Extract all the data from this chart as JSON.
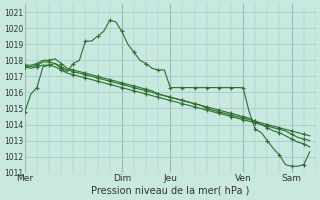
{
  "xlabel": "Pression niveau de la mer( hPa )",
  "bg_color": "#c8e8e0",
  "grid_color": "#a0c8c0",
  "line_color": "#2d6e2d",
  "marker": "+",
  "ylim": [
    1011,
    1021.5
  ],
  "ylim_display": [
    1011,
    1021
  ],
  "yticks": [
    1011,
    1012,
    1013,
    1014,
    1015,
    1016,
    1017,
    1018,
    1019,
    1020,
    1021
  ],
  "day_labels": [
    "Mer",
    "Dim",
    "Jeu",
    "Ven",
    "Sam"
  ],
  "day_positions": [
    0,
    16,
    24,
    36,
    44
  ],
  "xmax": 48,
  "series": [
    [
      1014.8,
      1015.9,
      1016.3,
      1017.6,
      1017.7,
      1017.8,
      1017.5,
      1017.3,
      1017.8,
      1018.0,
      1019.2,
      1019.2,
      1019.5,
      1019.8,
      1020.5,
      1020.4,
      1019.8,
      1019.0,
      1018.5,
      1018.0,
      1017.8,
      1017.5,
      1017.4,
      1017.4,
      1016.3,
      1016.3,
      1016.3,
      1016.3,
      1016.3,
      1016.3,
      1016.3,
      1016.3,
      1016.3,
      1016.3,
      1016.3,
      1016.3,
      1016.3,
      1014.8,
      1013.7,
      1013.5,
      1013.0,
      1012.5,
      1012.1,
      1011.5,
      1011.4,
      1011.4,
      1011.5,
      1012.3
    ],
    [
      1017.7,
      1017.7,
      1017.8,
      1018.0,
      1018.0,
      1018.1,
      1017.8,
      1017.5,
      1017.4,
      1017.3,
      1017.2,
      1017.1,
      1017.0,
      1016.9,
      1016.8,
      1016.7,
      1016.6,
      1016.5,
      1016.4,
      1016.3,
      1016.2,
      1016.1,
      1015.9,
      1015.8,
      1015.7,
      1015.6,
      1015.5,
      1015.4,
      1015.3,
      1015.2,
      1015.1,
      1015.0,
      1014.9,
      1014.8,
      1014.7,
      1014.6,
      1014.5,
      1014.4,
      1014.2,
      1014.0,
      1013.8,
      1013.6,
      1013.5,
      1013.3,
      1013.1,
      1012.9,
      1012.8,
      1012.6
    ],
    [
      1017.6,
      1017.6,
      1017.7,
      1017.9,
      1017.9,
      1017.8,
      1017.6,
      1017.4,
      1017.3,
      1017.2,
      1017.1,
      1017.0,
      1016.9,
      1016.8,
      1016.7,
      1016.6,
      1016.5,
      1016.4,
      1016.3,
      1016.2,
      1016.1,
      1016.0,
      1015.9,
      1015.8,
      1015.7,
      1015.6,
      1015.5,
      1015.4,
      1015.3,
      1015.2,
      1015.0,
      1014.9,
      1014.8,
      1014.7,
      1014.6,
      1014.5,
      1014.4,
      1014.3,
      1014.2,
      1014.1,
      1014.0,
      1013.9,
      1013.8,
      1013.7,
      1013.6,
      1013.5,
      1013.4,
      1013.3
    ],
    [
      1017.6,
      1017.5,
      1017.6,
      1017.7,
      1017.7,
      1017.6,
      1017.4,
      1017.2,
      1017.1,
      1017.0,
      1016.9,
      1016.8,
      1016.7,
      1016.6,
      1016.5,
      1016.4,
      1016.3,
      1016.2,
      1016.1,
      1016.0,
      1015.9,
      1015.8,
      1015.7,
      1015.6,
      1015.5,
      1015.4,
      1015.3,
      1015.2,
      1015.1,
      1015.0,
      1014.9,
      1014.8,
      1014.7,
      1014.6,
      1014.5,
      1014.4,
      1014.3,
      1014.2,
      1014.1,
      1014.0,
      1013.9,
      1013.8,
      1013.7,
      1013.6,
      1013.4,
      1013.2,
      1013.1,
      1013.0
    ]
  ]
}
